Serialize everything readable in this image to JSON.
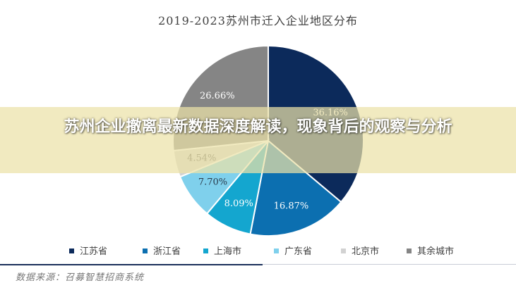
{
  "chart_data": {
    "type": "pie",
    "title": "2019-2023苏州市迁入企业地区分布",
    "slices": [
      {
        "label": "江苏省",
        "value": 36.16,
        "value_label": "36.16%",
        "color": "#0c2a5b",
        "label_color": "#ffffff"
      },
      {
        "label": "浙江省",
        "value": 16.87,
        "value_label": "16.87%",
        "color": "#0c6fb0",
        "label_color": "#ffffff"
      },
      {
        "label": "上海市",
        "value": 8.09,
        "value_label": "8.09%",
        "color": "#14a6cf",
        "label_color": "#ffffff"
      },
      {
        "label": "广东省",
        "value": 7.7,
        "value_label": "7.70%",
        "color": "#7fd0ec",
        "label_color": "#2a3b4c"
      },
      {
        "label": "北京市",
        "value": 4.54,
        "value_label": "4.54%",
        "color": "#d2d2d2",
        "label_color": "#555555"
      },
      {
        "label": "其余城市",
        "value": 26.66,
        "value_label": "26.66%",
        "color": "#858585",
        "label_color": "#ffffff"
      }
    ],
    "legend_position": "bottom"
  },
  "source_text": "数据来源：召募智慧招商系统",
  "overlay": {
    "headline": "苏州企业撤离最新数据深度解读，现象背后的观察与分析"
  }
}
